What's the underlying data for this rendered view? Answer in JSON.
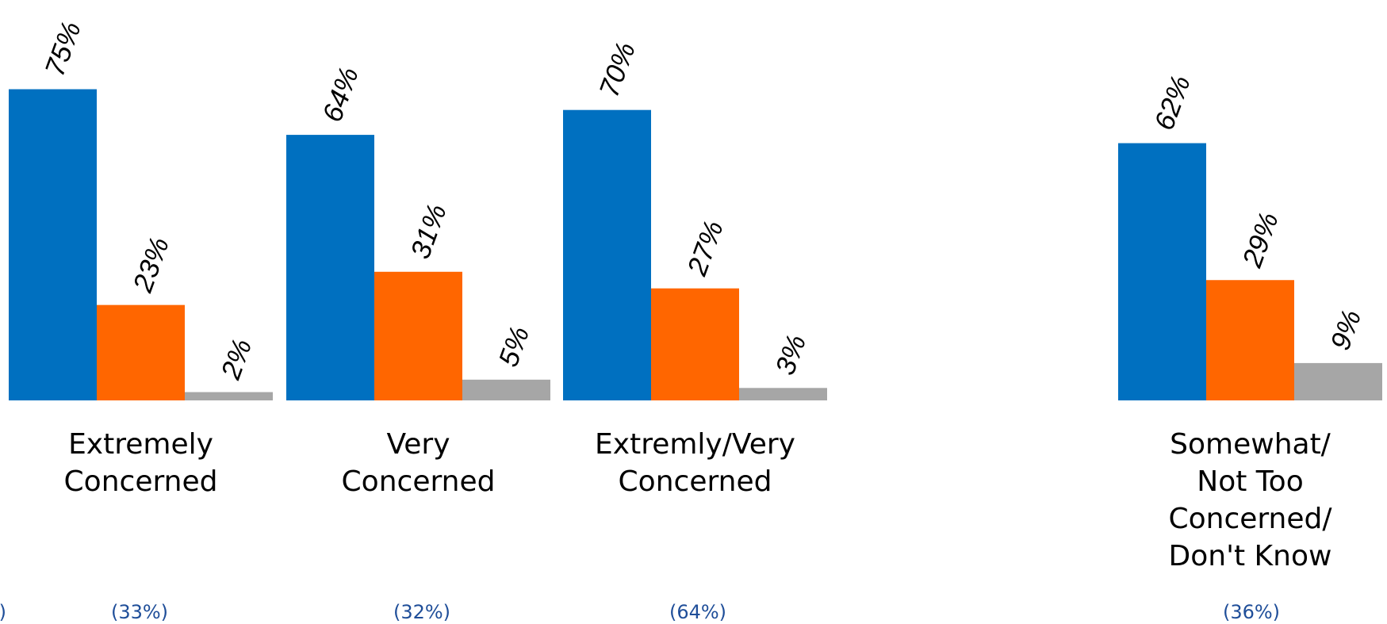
{
  "chart_data": {
    "type": "bar",
    "title": "",
    "xlabel": "",
    "ylabel": "",
    "ylim": [
      0,
      100
    ],
    "grid": false,
    "colors": {
      "series_1": "#0070C0",
      "series_2": "#FF6600",
      "series_3": "#A6A6A6",
      "base_text": "#1F4E99"
    },
    "categories": [
      {
        "label_lines": [
          "Extremely",
          "Concerned"
        ],
        "values": [
          75,
          23,
          2
        ],
        "value_labels": [
          "75%",
          "23%",
          "2%"
        ]
      },
      {
        "label_lines": [
          "Very",
          "Concerned"
        ],
        "values": [
          64,
          31,
          5
        ],
        "value_labels": [
          "64%",
          "31%",
          "5%"
        ]
      },
      {
        "label_lines": [
          "Extremly/Very",
          "Concerned"
        ],
        "values": [
          70,
          27,
          3
        ],
        "value_labels": [
          "70%",
          "27%",
          "3%"
        ]
      },
      {
        "label_lines": [
          "Somewhat/",
          "Not Too",
          "Concerned/",
          "Don't Know"
        ],
        "values": [
          62,
          29,
          9
        ],
        "value_labels": [
          "62%",
          "29%",
          "9%"
        ]
      }
    ],
    "base_labels": [
      "e)",
      "(33%)",
      "(32%)",
      "(64%)",
      "(36%)"
    ]
  }
}
